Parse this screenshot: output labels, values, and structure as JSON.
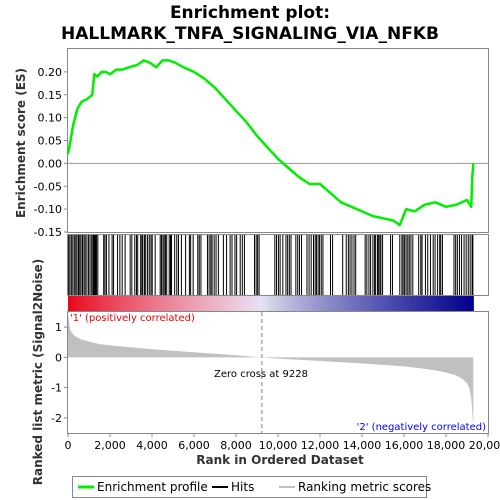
{
  "chart_data": {
    "type": "line",
    "title_line1": "Enrichment plot:",
    "title_line2": "HALLMARK_TNFA_SIGNALING_VIA_NFKB",
    "xlabel": "Rank in Ordered Dataset",
    "ylabel_top": "Enrichment score (ES)",
    "ylabel_bottom": "Ranked list metric (Signal2Noise)",
    "xlim": [
      0,
      20000
    ],
    "x_ticks": [
      0,
      2000,
      4000,
      6000,
      8000,
      10000,
      12000,
      14000,
      16000,
      18000,
      20000
    ],
    "x_tick_labels": [
      "0",
      "2,000",
      "4,000",
      "6,000",
      "8,000",
      "10,000",
      "12,000",
      "14,000",
      "16,000",
      "18,000",
      "20,000"
    ],
    "es_ylim": [
      -0.15,
      0.25
    ],
    "es_y_ticks": [
      -0.15,
      -0.1,
      -0.05,
      0.0,
      0.05,
      0.1,
      0.15,
      0.2
    ],
    "es_y_tick_labels": [
      "-0.15",
      "-0.10",
      "-0.05",
      "0.00",
      "0.05",
      "0.10",
      "0.15",
      "0.20"
    ],
    "metric_ylim": [
      -2.5,
      1.5
    ],
    "metric_y_ticks": [
      -2,
      -1,
      0,
      1
    ],
    "metric_y_tick_labels": [
      "-2",
      "-1",
      "0",
      "1"
    ],
    "n_genes": 19300,
    "zero_cross_rank": 9228,
    "zero_cross_label": "Zero cross at 9228",
    "positive_label": "'1' (positively correlated)",
    "negative_label": "'2' (negatively correlated)",
    "enrichment_profile": {
      "x": [
        0,
        100,
        250,
        450,
        650,
        900,
        1150,
        1250,
        1400,
        1600,
        1800,
        2000,
        2300,
        2600,
        2900,
        3300,
        3600,
        3900,
        4200,
        4500,
        4800,
        5100,
        5500,
        6000,
        6500,
        7000,
        7500,
        8000,
        8500,
        9000,
        9500,
        10000,
        10500,
        11000,
        11500,
        12000,
        12500,
        13000,
        13500,
        14000,
        14500,
        15000,
        15500,
        15800,
        16100,
        16500,
        17000,
        17500,
        18000,
        18500,
        19000,
        19200,
        19250,
        19300
      ],
      "y": [
        0.02,
        0.045,
        0.085,
        0.12,
        0.135,
        0.14,
        0.15,
        0.195,
        0.19,
        0.2,
        0.2,
        0.195,
        0.205,
        0.205,
        0.21,
        0.215,
        0.225,
        0.22,
        0.21,
        0.225,
        0.225,
        0.22,
        0.21,
        0.2,
        0.185,
        0.165,
        0.14,
        0.115,
        0.09,
        0.06,
        0.035,
        0.01,
        -0.01,
        -0.03,
        -0.045,
        -0.045,
        -0.065,
        -0.085,
        -0.095,
        -0.105,
        -0.115,
        -0.12,
        -0.125,
        -0.135,
        -0.1,
        -0.105,
        -0.09,
        -0.085,
        -0.095,
        -0.09,
        -0.08,
        -0.095,
        -0.03,
        0.0
      ]
    },
    "metric_curve": {
      "x": [
        0,
        100,
        300,
        600,
        1000,
        1500,
        2000,
        3000,
        4000,
        5000,
        6000,
        7000,
        8000,
        9228,
        10000,
        11000,
        12000,
        13000,
        14000,
        15000,
        16000,
        17000,
        17500,
        18000,
        18500,
        18800,
        19000,
        19100,
        19200,
        19250,
        19300
      ],
      "y": [
        1.45,
        0.9,
        0.72,
        0.6,
        0.52,
        0.44,
        0.4,
        0.33,
        0.27,
        0.22,
        0.17,
        0.12,
        0.07,
        0.0,
        -0.04,
        -0.08,
        -0.12,
        -0.16,
        -0.2,
        -0.25,
        -0.3,
        -0.38,
        -0.43,
        -0.5,
        -0.6,
        -0.72,
        -0.85,
        -1.0,
        -1.3,
        -1.8,
        -2.35
      ]
    },
    "hit_ranks": [
      30,
      90,
      160,
      230,
      300,
      370,
      430,
      500,
      560,
      620,
      690,
      760,
      820,
      900,
      980,
      1050,
      1130,
      1190,
      1230,
      1270,
      1310,
      1360,
      1420,
      1700,
      1760,
      1830,
      1950,
      2100,
      2170,
      2360,
      2470,
      2580,
      2720,
      2960,
      3040,
      3180,
      3260,
      3320,
      3460,
      3520,
      3560,
      3640,
      3700,
      3790,
      3870,
      3950,
      4010,
      4150,
      4390,
      4450,
      4520,
      4580,
      4640,
      4700,
      4820,
      4880,
      4930,
      5080,
      5180,
      5260,
      5400,
      5600,
      5780,
      5840,
      5960,
      6180,
      6250,
      6330,
      6640,
      6720,
      6800,
      6860,
      6960,
      7050,
      7160,
      7400,
      7550,
      7720,
      7810,
      7950,
      8030,
      8200,
      8300,
      8400,
      8880,
      8960,
      9030,
      9100,
      9850,
      9930,
      10020,
      10100,
      10230,
      10380,
      10460,
      10540,
      10620,
      10850,
      10940,
      11020,
      11120,
      11380,
      11480,
      11580,
      11690,
      11770,
      11830,
      11910,
      11980,
      12060,
      12140,
      12500,
      12600,
      13080,
      13250,
      13350,
      13430,
      13520,
      13620,
      13700,
      14150,
      14230,
      14330,
      14410,
      14520,
      14600,
      14650,
      14740,
      14780,
      14850,
      14900,
      14980,
      15360,
      15450,
      15800,
      15900,
      15960,
      16030,
      16100,
      16180,
      16250,
      16330,
      16420,
      16700,
      16800,
      16860,
      17020,
      17130,
      17260,
      17390,
      17480,
      17600,
      17700,
      17750,
      17830,
      18380,
      18460,
      18540,
      18640,
      18740,
      18860,
      18960,
      19060,
      19150,
      19240,
      19280
    ]
  },
  "legend": {
    "enrichment_label": "Enrichment profile",
    "hits_label": "Hits",
    "ranking_label": "Ranking metric scores"
  },
  "colors": {
    "enrichment_line": "#00ee00",
    "hits": "#000000",
    "metric_fill": "#c0c0c0",
    "positive_text": "#ee0000",
    "negative_text": "#0000ee",
    "zero_cross_line": "#aaaaaa"
  }
}
